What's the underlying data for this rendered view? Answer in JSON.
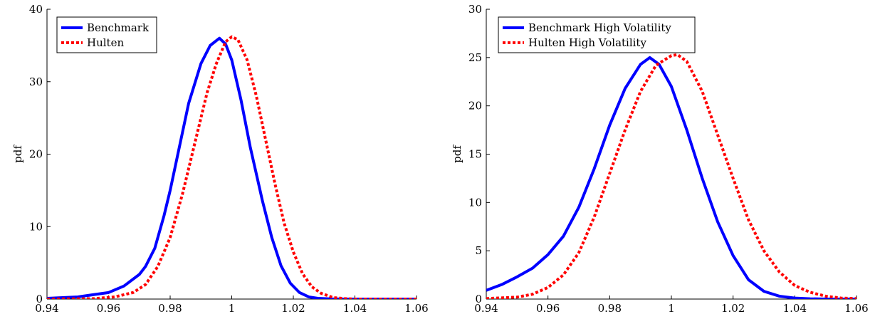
{
  "chart_data": [
    {
      "type": "line",
      "title": "",
      "xlabel": "",
      "ylabel": "pdf",
      "xlim": [
        0.94,
        1.06
      ],
      "ylim": [
        0,
        40
      ],
      "xticks": [
        0.94,
        0.96,
        0.98,
        1,
        1.02,
        1.04,
        1.06
      ],
      "xtick_labels": [
        "0.94",
        "0.96",
        "0.98",
        "1",
        "1.02",
        "1.04",
        "1.06"
      ],
      "yticks": [
        0,
        10,
        20,
        30,
        40
      ],
      "ytick_labels": [
        "0",
        "10",
        "20",
        "30",
        "40"
      ],
      "legend_position": "top-left",
      "series": [
        {
          "name": "Benchmark",
          "color": "#0000ff",
          "style": "solid",
          "x": [
            0.94,
            0.945,
            0.95,
            0.955,
            0.96,
            0.965,
            0.97,
            0.972,
            0.975,
            0.978,
            0.98,
            0.983,
            0.986,
            0.99,
            0.993,
            0.996,
            0.998,
            1.0,
            1.003,
            1.006,
            1.01,
            1.013,
            1.016,
            1.019,
            1.022,
            1.025,
            1.028,
            1.032,
            1.036,
            1.04,
            1.06
          ],
          "y": [
            0.1,
            0.2,
            0.3,
            0.6,
            0.9,
            1.8,
            3.4,
            4.5,
            7.0,
            11.5,
            15.0,
            21.0,
            27.0,
            32.5,
            35.0,
            36.0,
            35.2,
            33.0,
            27.5,
            21.0,
            13.5,
            8.5,
            4.6,
            2.2,
            0.9,
            0.3,
            0.1,
            0.03,
            0.0,
            0.0,
            0.0
          ]
        },
        {
          "name": "Hulten",
          "color": "#ff0000",
          "style": "dotted",
          "x": [
            0.94,
            0.955,
            0.962,
            0.968,
            0.972,
            0.976,
            0.98,
            0.984,
            0.988,
            0.992,
            0.995,
            0.998,
            1.0,
            1.002,
            1.005,
            1.008,
            1.011,
            1.014,
            1.017,
            1.02,
            1.023,
            1.026,
            1.029,
            1.033,
            1.037,
            1.04,
            1.06
          ],
          "y": [
            0.0,
            0.05,
            0.3,
            0.9,
            2.0,
            4.5,
            8.5,
            14.5,
            21.5,
            28.5,
            32.5,
            35.5,
            36.2,
            35.8,
            33.0,
            28.0,
            22.0,
            16.0,
            10.5,
            6.5,
            3.5,
            1.7,
            0.8,
            0.2,
            0.05,
            0.0,
            0.0
          ]
        }
      ]
    },
    {
      "type": "line",
      "title": "",
      "xlabel": "",
      "ylabel": "pdf",
      "xlim": [
        0.94,
        1.06
      ],
      "ylim": [
        0,
        30
      ],
      "xticks": [
        0.94,
        0.96,
        0.98,
        1,
        1.02,
        1.04,
        1.06
      ],
      "xtick_labels": [
        "0.94",
        "0.96",
        "0.98",
        "1",
        "1.02",
        "1.04",
        "1.06"
      ],
      "yticks": [
        0,
        5,
        10,
        15,
        20,
        25,
        30
      ],
      "ytick_labels": [
        "0",
        "5",
        "10",
        "15",
        "20",
        "25",
        "30"
      ],
      "legend_position": "top-left",
      "series": [
        {
          "name": "Benchmark High Volatility",
          "color": "#0000ff",
          "style": "solid",
          "x": [
            0.94,
            0.945,
            0.95,
            0.955,
            0.96,
            0.965,
            0.97,
            0.975,
            0.98,
            0.985,
            0.99,
            0.993,
            0.996,
            1.0,
            1.005,
            1.01,
            1.015,
            1.02,
            1.025,
            1.03,
            1.035,
            1.04,
            1.045,
            1.05,
            1.06
          ],
          "y": [
            0.9,
            1.5,
            2.3,
            3.2,
            4.6,
            6.5,
            9.5,
            13.5,
            18.0,
            21.8,
            24.3,
            25.0,
            24.3,
            22.0,
            17.5,
            12.5,
            8.0,
            4.5,
            2.0,
            0.8,
            0.3,
            0.1,
            0.03,
            0.0,
            0.0
          ]
        },
        {
          "name": "Hulten High Volatility",
          "color": "#ff0000",
          "style": "dotted",
          "x": [
            0.94,
            0.95,
            0.955,
            0.96,
            0.965,
            0.97,
            0.975,
            0.98,
            0.985,
            0.99,
            0.995,
            1.0,
            1.002,
            1.005,
            1.01,
            1.015,
            1.02,
            1.025,
            1.03,
            1.035,
            1.04,
            1.045,
            1.05,
            1.055,
            1.06
          ],
          "y": [
            0.05,
            0.2,
            0.5,
            1.2,
            2.5,
            4.8,
            8.5,
            13.0,
            17.5,
            21.5,
            24.2,
            25.2,
            25.3,
            24.6,
            21.5,
            17.0,
            12.5,
            8.2,
            5.0,
            2.8,
            1.4,
            0.7,
            0.3,
            0.1,
            0.05
          ]
        }
      ]
    }
  ]
}
